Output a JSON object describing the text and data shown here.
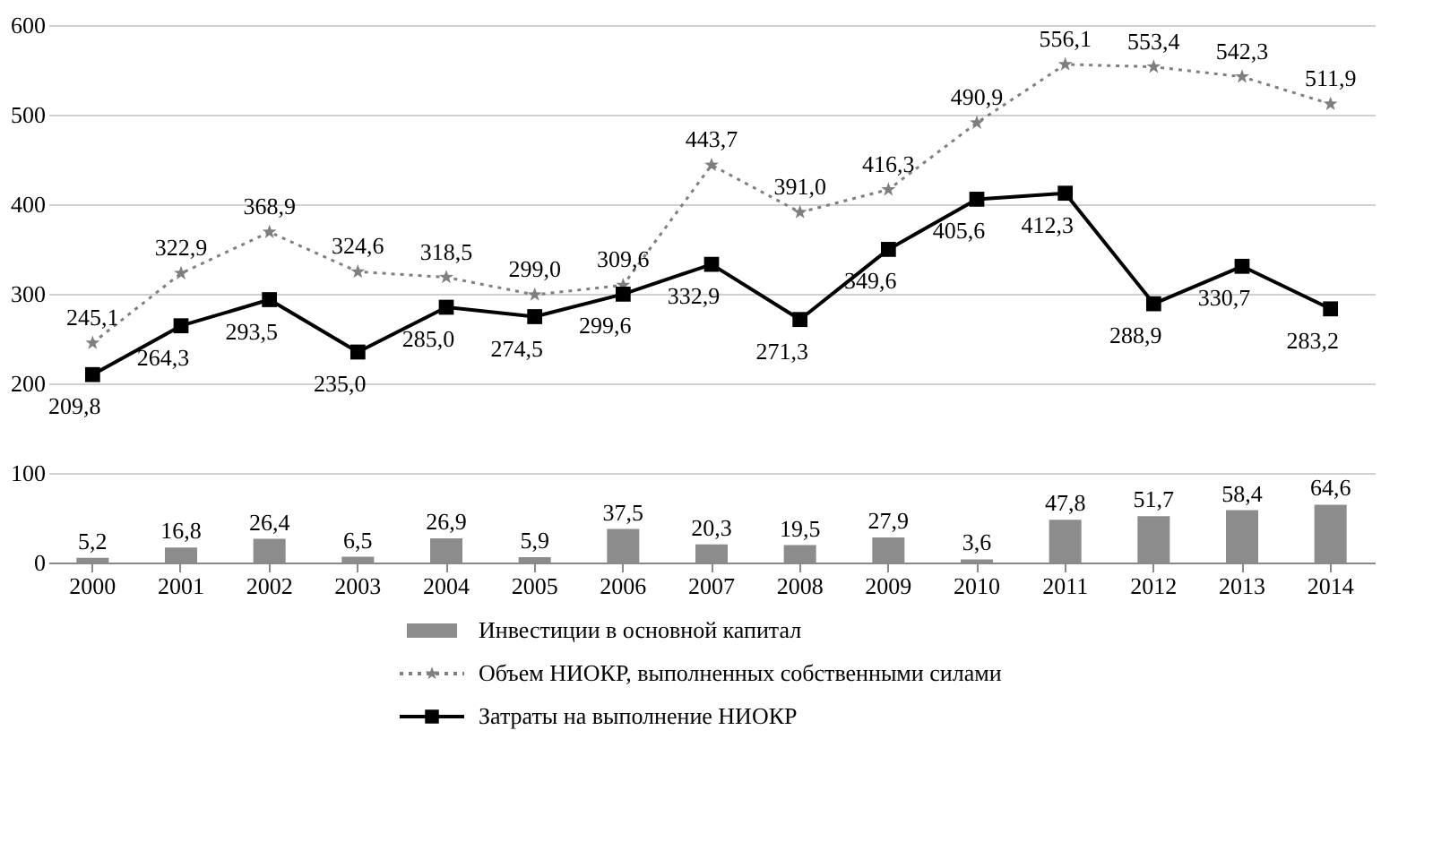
{
  "chart_data": {
    "type": "line",
    "categories": [
      "2000",
      "2001",
      "2002",
      "2003",
      "2004",
      "2005",
      "2006",
      "2007",
      "2008",
      "2009",
      "2010",
      "2011",
      "2012",
      "2013",
      "2014"
    ],
    "ylim": [
      0,
      600
    ],
    "yticks": [
      0,
      100,
      200,
      300,
      400,
      500,
      600
    ],
    "grid": "y",
    "legend": "bottom",
    "series": [
      {
        "name": "Инвестиции в основной капитал",
        "type": "bar",
        "color": "#8c8c8c",
        "values": [
          5.2,
          16.8,
          26.4,
          6.5,
          26.9,
          5.9,
          37.5,
          20.3,
          19.5,
          27.9,
          3.6,
          47.8,
          51.7,
          58.4,
          64.6
        ],
        "value_labels": [
          "5,2",
          "16,8",
          "26,4",
          "6,5",
          "26,9",
          "5,9",
          "37,5",
          "20,3",
          "19,5",
          "27,9",
          "3,6",
          "47,8",
          "51,7",
          "58,4",
          "64,6"
        ]
      },
      {
        "name": "Объем НИОКР, выполненных собственными силами",
        "color": "#7f7f7f",
        "marker": "star",
        "line_style": "dotted",
        "values": [
          245.1,
          322.9,
          368.9,
          324.6,
          318.5,
          299.0,
          309.6,
          443.7,
          391.0,
          416.3,
          490.9,
          556.1,
          553.4,
          542.3,
          511.9
        ],
        "value_labels": [
          "245,1",
          "322,9",
          "368,9",
          "324,6",
          "318,5",
          "299,0",
          "309,6",
          "443,7",
          "391,0",
          "416,3",
          "490,9",
          "556,1",
          "553,4",
          "542,3",
          "511,9"
        ]
      },
      {
        "name": "Затраты на выполнение НИОКР",
        "color": "#000000",
        "marker": "square",
        "line_style": "solid",
        "values": [
          209.8,
          264.3,
          293.5,
          235.0,
          285.0,
          274.5,
          299.6,
          332.9,
          271.3,
          349.6,
          405.6,
          412.3,
          288.9,
          330.7,
          283.2
        ],
        "value_labels": [
          "209,8",
          "264,3",
          "293,5",
          "235,0",
          "285,0",
          "274,5",
          "299,6",
          "332,9",
          "271,3",
          "349,6",
          "405,6",
          "412,3",
          "288,9",
          "330,7",
          "283,2"
        ]
      }
    ]
  }
}
